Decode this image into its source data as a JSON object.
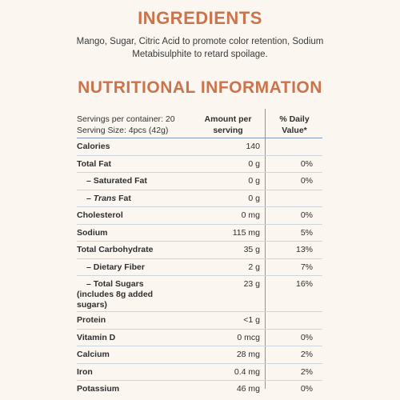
{
  "ingredients": {
    "title": "INGREDIENTS",
    "text": "Mango, Sugar, Citric Acid to promote color retention, Sodium Metabisulphite to retard spoilage."
  },
  "nutrition": {
    "title": "NUTRITIONAL INFORMATION",
    "servings_line1": "Servings per container: 20",
    "servings_line2": "Serving Size: 4pcs (42g)",
    "amount_header": "Amount per serving",
    "dv_header": "% Daily Value*",
    "rows": [
      {
        "name": "Calories",
        "amount": "140",
        "dv": ""
      },
      {
        "name": "Total Fat",
        "amount": "0 g",
        "dv": "0%"
      },
      {
        "name": "– Saturated Fat",
        "amount": "0 g",
        "dv": "0%"
      },
      {
        "name_prefix": "– ",
        "name_italic": "Trans",
        "name_suffix": " Fat",
        "amount": "0 g",
        "dv": ""
      },
      {
        "name": "Cholesterol",
        "amount": "0 mg",
        "dv": "0%"
      },
      {
        "name": "Sodium",
        "amount": "115 mg",
        "dv": "5%"
      },
      {
        "name": "Total Carbohydrate",
        "amount": "35 g",
        "dv": "13%"
      },
      {
        "name": "– Dietary Fiber",
        "amount": "2 g",
        "dv": "7%"
      },
      {
        "name_line1": "– Total Sugars",
        "name_line2": "(includes 8g added",
        "name_line3": "sugars)",
        "amount": "23 g",
        "dv": "16%"
      },
      {
        "name": "Protein",
        "amount": "<1 g",
        "dv": ""
      },
      {
        "name": "Vitamin D",
        "amount": "0 mcg",
        "dv": "0%"
      },
      {
        "name": "Calcium",
        "amount": "28 mg",
        "dv": "2%"
      },
      {
        "name": "Iron",
        "amount": "0.4 mg",
        "dv": "2%"
      },
      {
        "name": "Potassium",
        "amount": "46 mg",
        "dv": "0%"
      }
    ]
  }
}
